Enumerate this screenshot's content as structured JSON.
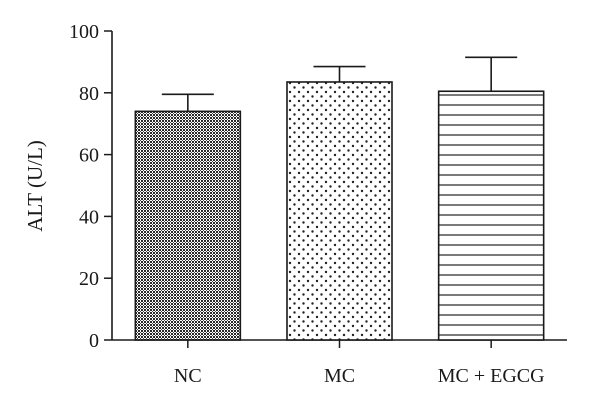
{
  "chart_data": {
    "type": "bar",
    "title": "",
    "xlabel": "",
    "ylabel": "ALT (U/L)",
    "ylim": [
      0,
      100
    ],
    "yticks": [
      0,
      20,
      40,
      60,
      80,
      100
    ],
    "categories": [
      "NC",
      "MC",
      "MC + EGCG"
    ],
    "values": [
      74,
      83.5,
      80.5
    ],
    "error_upper": [
      79.5,
      88.5,
      91.5
    ],
    "bar_patterns": [
      "crosshatch",
      "dots",
      "horizontal-lines"
    ],
    "grid": false,
    "legend": "none"
  }
}
